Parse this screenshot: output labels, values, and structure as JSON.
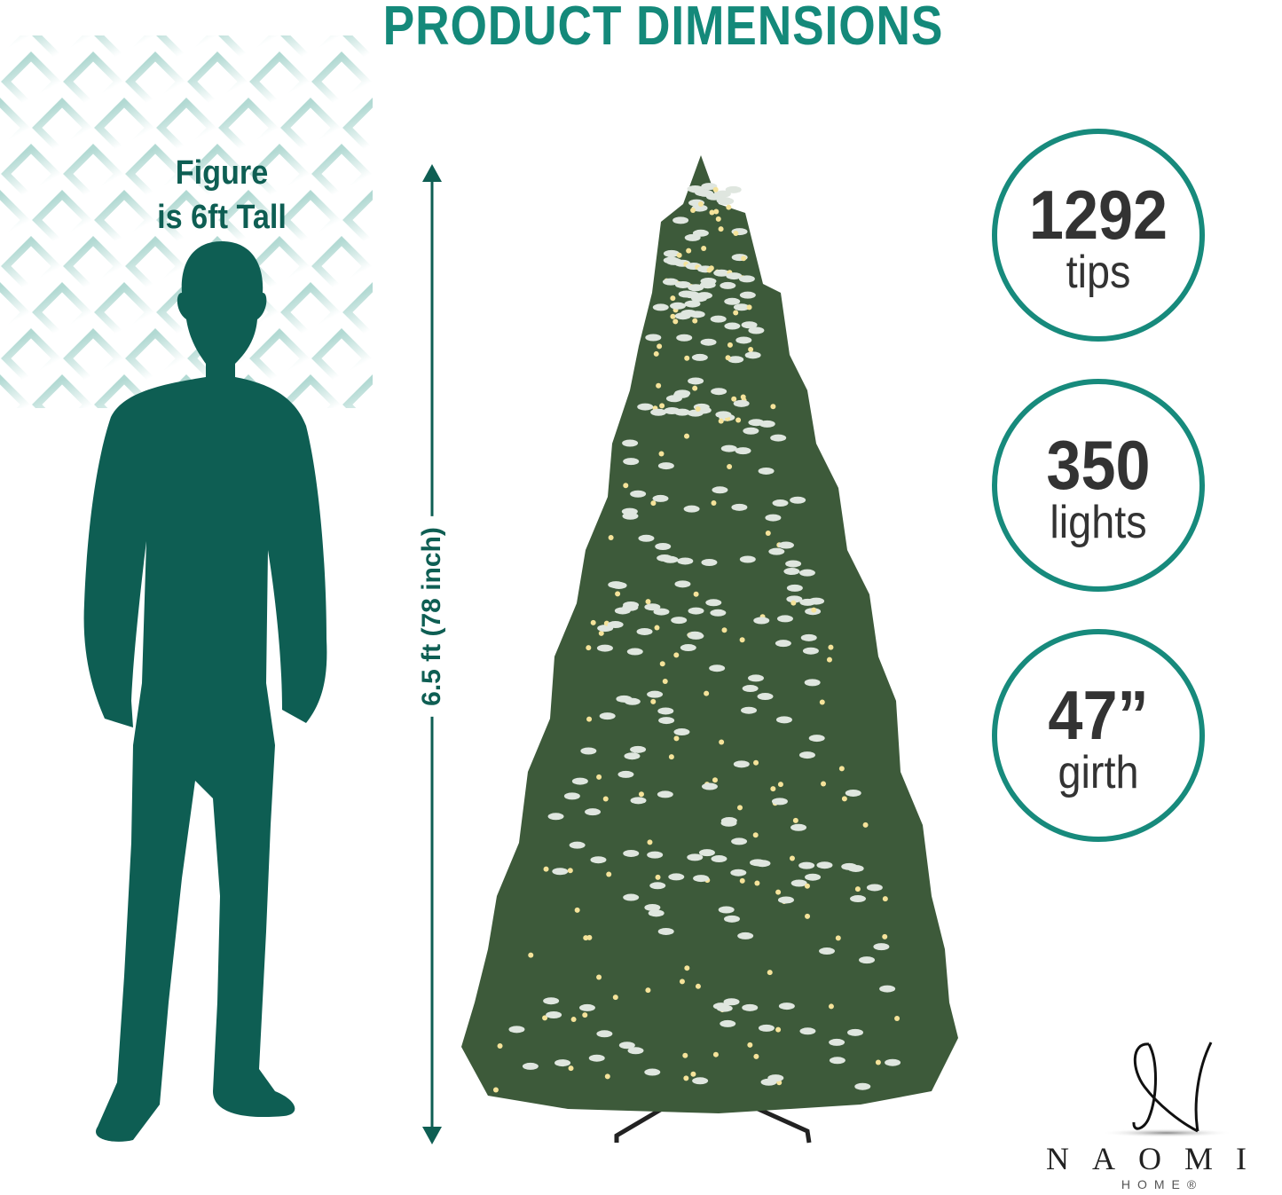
{
  "title": "PRODUCT DIMENSIONS",
  "figure_label": {
    "line1": "Figure",
    "line2": "is 6ft Tall"
  },
  "tree_height_label": "6.5 ft (78 inch)",
  "stats": [
    {
      "value": "1292",
      "unit": "tips"
    },
    {
      "value": "350",
      "unit": "lights"
    },
    {
      "value": "47”",
      "unit": "girth"
    }
  ],
  "brand": {
    "logo_letter": "N",
    "name": "NAOMI",
    "sub": "HOME®"
  },
  "colors": {
    "title": "#14897a",
    "silhouette": "#0e5e53",
    "circle_border": "#178a7c",
    "tree": "#3d5a3a"
  }
}
